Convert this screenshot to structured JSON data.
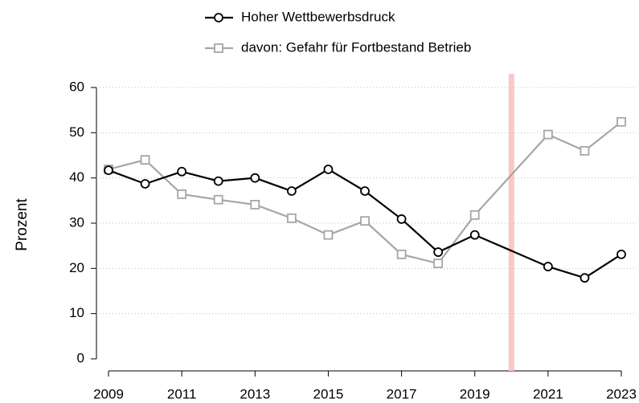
{
  "chart_data": {
    "type": "line",
    "y_label": "Prozent",
    "x": [
      2009,
      2010,
      2011,
      2012,
      2013,
      2014,
      2015,
      2016,
      2017,
      2018,
      2019,
      2021,
      2022,
      2023
    ],
    "series": [
      {
        "name": "Hoher Wettbewerbsdruck",
        "color": "#000000",
        "marker": "circle",
        "values": [
          41.7,
          38.7,
          41.4,
          39.3,
          40.0,
          37.1,
          41.9,
          37.1,
          30.9,
          23.6,
          27.4,
          20.4,
          17.9,
          23.1
        ]
      },
      {
        "name": "davon: Gefahr für Fortbestand Betrieb",
        "color": "#a6a6a6",
        "marker": "square",
        "values": [
          41.9,
          44.0,
          36.4,
          35.2,
          34.1,
          31.1,
          27.4,
          30.5,
          23.1,
          21.1,
          31.8,
          49.6,
          46.0,
          52.4
        ]
      }
    ],
    "xlim": [
      2009,
      2023
    ],
    "xticks": [
      2009,
      2011,
      2013,
      2015,
      2017,
      2019,
      2021,
      2023
    ],
    "ylim": [
      0,
      60
    ],
    "yticks": [
      0,
      10,
      20,
      30,
      40,
      50,
      60
    ],
    "grid": true,
    "vline": {
      "x": 2020,
      "color": "#f8c8c8"
    }
  }
}
